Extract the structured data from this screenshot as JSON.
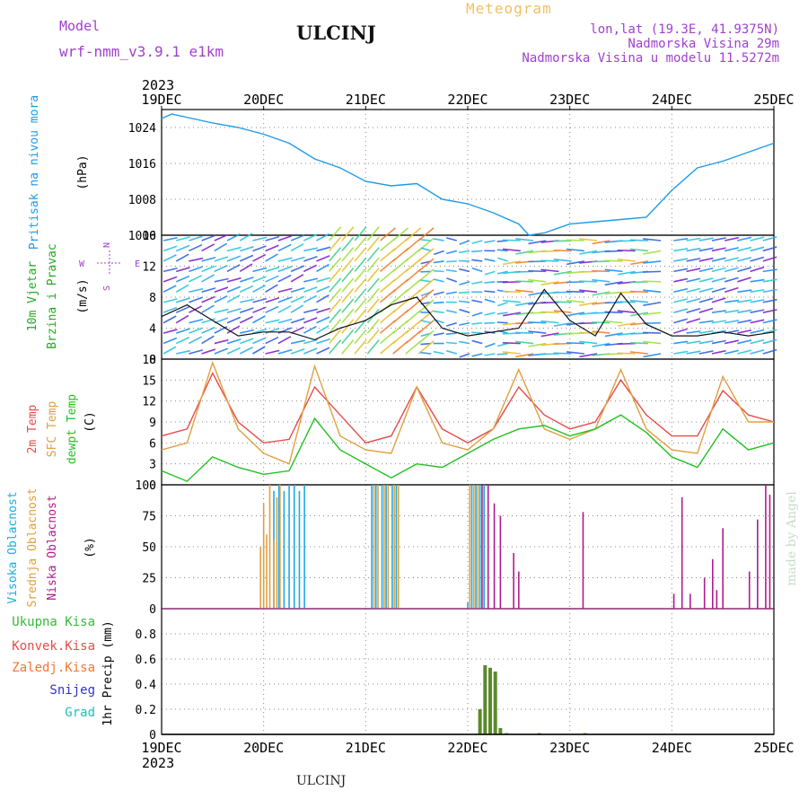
{
  "header": {
    "model_label": "Model",
    "model_name": "wrf-nmm_v3.9.1 e1km",
    "station": "ULCINJ",
    "title": "Meteogram",
    "lonlat": "lon,lat (19.3E, 41.9375N)",
    "alt_real": "Nadmorska Visina 29m",
    "alt_model": "Nadmorska Visina u modelu 11.5272m"
  },
  "footer": {
    "station": "ULCINJ",
    "credit": "made by Angel"
  },
  "time_axis": {
    "year": "2023",
    "ticks": [
      "19DEC",
      "20DEC",
      "21DEC",
      "22DEC",
      "23DEC",
      "24DEC",
      "25DEC"
    ]
  },
  "colors": {
    "pressure": "#1e9be6",
    "t2m": "#e84a4a",
    "sfc": "#e0a040",
    "dew": "#22c022",
    "high_cloud": "#1eaadf",
    "mid_cloud": "#e0a040",
    "low_cloud": "#b01c8c",
    "total_precip": "#38b838",
    "conv_precip": "#e84a4a",
    "frz_precip": "#f07830",
    "snow": "#3030d8",
    "graupel": "#20c0c0",
    "wind_label": "#22aa22",
    "axis_label_purple": "#a040d0"
  },
  "chart_data": [
    {
      "type": "line",
      "title": "",
      "side_label": "Pritisak na nivou mora",
      "ylabel": "(hPa)",
      "ylim": [
        1000,
        1028
      ],
      "yticks": [
        "1000",
        "1008",
        "1016",
        "1024"
      ],
      "x": [
        0,
        0.1,
        0.3,
        0.5,
        0.75,
        1.0,
        1.25,
        1.5,
        1.75,
        2.0,
        2.25,
        2.5,
        2.75,
        3.0,
        3.25,
        3.5,
        3.6,
        3.75,
        4.0,
        4.25,
        4.5,
        4.75,
        5.0,
        5.25,
        5.5,
        5.75,
        6.0
      ],
      "series": [
        {
          "name": "",
          "values": [
            1026,
            1027,
            1026,
            1025,
            1024,
            1022.5,
            1020.5,
            1017,
            1015,
            1012,
            1011,
            1011.5,
            1008,
            1007,
            1005,
            1002.5,
            1000,
            1000.5,
            1002.5,
            1003,
            1003.5,
            1004,
            1010,
            1015,
            1016.5,
            1018.5,
            1020.5
          ]
        }
      ]
    },
    {
      "type": "line",
      "title": "",
      "side_label": "10m Vjetar Brzina i Pravac",
      "ylabel": "(m/s)",
      "ylim": [
        0,
        16
      ],
      "yticks": [
        "0",
        "4",
        "8",
        "12",
        "16"
      ],
      "compass": {
        "north": "N",
        "east": "E",
        "west": "W",
        "south": "S"
      },
      "x": [
        0,
        0.25,
        0.5,
        0.75,
        1.0,
        1.25,
        1.5,
        1.75,
        2.0,
        2.25,
        2.5,
        2.75,
        3.0,
        3.25,
        3.5,
        3.75,
        4.0,
        4.25,
        4.5,
        4.75,
        5.0,
        5.25,
        5.5,
        5.75,
        6.0
      ],
      "series": [
        {
          "name": "",
          "values": [
            5.5,
            7,
            5,
            3,
            3.5,
            3.5,
            2.5,
            4,
            5,
            7,
            8,
            4,
            3,
            3.5,
            4,
            9,
            5,
            3,
            8.5,
            4.5,
            3,
            3,
            3.5,
            3,
            3.5
          ]
        }
      ]
    },
    {
      "type": "line",
      "title": "",
      "side_labels": [
        "2m Temp",
        "SFC Temp",
        "dewpt Temp"
      ],
      "ylabel": "(C)",
      "ylim": [
        0,
        18
      ],
      "yticks": [
        "0",
        "3",
        "6",
        "9",
        "12",
        "15",
        "18"
      ],
      "x": [
        0,
        0.25,
        0.5,
        0.75,
        1.0,
        1.25,
        1.5,
        1.75,
        2.0,
        2.25,
        2.5,
        2.75,
        3.0,
        3.25,
        3.5,
        3.75,
        4.0,
        4.25,
        4.5,
        4.75,
        5.0,
        5.25,
        5.5,
        5.75,
        6.0
      ],
      "series": [
        {
          "name": "2m Temp",
          "values": [
            7,
            8,
            16,
            9,
            6,
            6.5,
            14,
            10,
            6,
            7,
            14,
            8,
            6,
            8,
            14,
            10,
            8,
            9,
            15,
            10,
            7,
            7,
            13.5,
            10,
            9
          ]
        },
        {
          "name": "SFC Temp",
          "values": [
            5,
            6,
            17.5,
            8,
            4.5,
            3,
            17,
            7,
            5,
            4.5,
            14,
            6,
            5,
            8,
            16.5,
            8,
            6.5,
            8,
            16.5,
            8,
            5,
            4.5,
            15.5,
            9,
            9
          ]
        },
        {
          "name": "dewpt Temp",
          "values": [
            2,
            0.5,
            4,
            2.5,
            1.5,
            2,
            9.5,
            5,
            3,
            1,
            3,
            2.5,
            4.5,
            6.5,
            8,
            8.5,
            7,
            8,
            10,
            7.5,
            4,
            2.5,
            8,
            5,
            6
          ]
        }
      ]
    },
    {
      "type": "bar",
      "title": "",
      "side_labels": [
        "Visoka Oblacnost",
        "Srednja Oblacnost",
        "Niska Oblacnost"
      ],
      "ylabel": "(%)",
      "ylim": [
        0,
        100
      ],
      "yticks": [
        "0",
        "25",
        "50",
        "75",
        "100"
      ],
      "series": [
        {
          "name": "Visoka Oblacnost",
          "x": [
            1.1,
            1.15,
            1.2,
            1.25,
            1.3,
            1.35,
            1.4,
            2.06,
            2.1,
            2.16,
            2.2,
            2.26,
            2.3,
            3.0,
            3.04,
            3.08,
            3.12,
            3.16
          ],
          "values": [
            95,
            100,
            95,
            100,
            100,
            95,
            100,
            100,
            100,
            100,
            100,
            100,
            100,
            5,
            100,
            100,
            100,
            100
          ]
        },
        {
          "name": "Srednja Oblacnost",
          "x": [
            0.97,
            1.0,
            1.03,
            1.06,
            1.1,
            1.13,
            1.16,
            2.08,
            2.12,
            2.18,
            2.22,
            2.28,
            2.32,
            3.02,
            3.06,
            3.1
          ],
          "values": [
            50,
            85,
            60,
            100,
            55,
            90,
            100,
            100,
            100,
            100,
            100,
            100,
            100,
            100,
            100,
            100
          ]
        },
        {
          "name": "Niska Oblacnost",
          "x": [
            3.14,
            3.2,
            3.26,
            3.32,
            3.45,
            3.5,
            4.13,
            5.02,
            5.1,
            5.18,
            5.32,
            5.4,
            5.44,
            5.5,
            5.76,
            5.84,
            5.92,
            5.96
          ],
          "values": [
            100,
            100,
            85,
            75,
            45,
            30,
            78,
            12,
            90,
            12,
            25,
            40,
            15,
            65,
            30,
            72,
            100,
            92
          ]
        }
      ]
    },
    {
      "type": "bar",
      "title": "",
      "side_labels": [
        "Ukupna Kisa",
        "Konvek.Kisa",
        "Zaledj.Kisa",
        "Snijeg",
        "Grad"
      ],
      "ylabel": "1hr Precip (mm)",
      "ylim": [
        0,
        1.0
      ],
      "yticks": [
        "0",
        "0.2",
        "0.4",
        "0.6",
        "0.8"
      ],
      "series": [
        {
          "name": "Ukupna Kisa",
          "x": [
            3.12,
            3.17,
            3.22,
            3.27,
            3.32,
            3.38,
            3.7,
            4.15
          ],
          "values": [
            0.2,
            0.55,
            0.53,
            0.5,
            0.05,
            0.01,
            0.01,
            0.01
          ]
        }
      ]
    }
  ]
}
